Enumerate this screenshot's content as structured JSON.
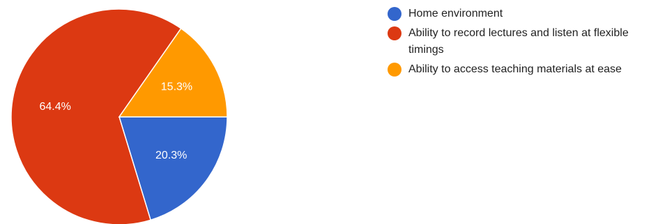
{
  "chart_data": {
    "type": "pie",
    "title": "",
    "categories": [
      "Home environment",
      "Ability to record lectures and listen at flexible timings",
      "Ability to access teaching materials at ease"
    ],
    "values": [
      20.3,
      64.4,
      15.3
    ],
    "labels": [
      "20.3%",
      "64.4%",
      "15.3%"
    ],
    "colors": [
      "#3366cc",
      "#dc3912",
      "#ff9900"
    ],
    "legend_position": "right"
  }
}
